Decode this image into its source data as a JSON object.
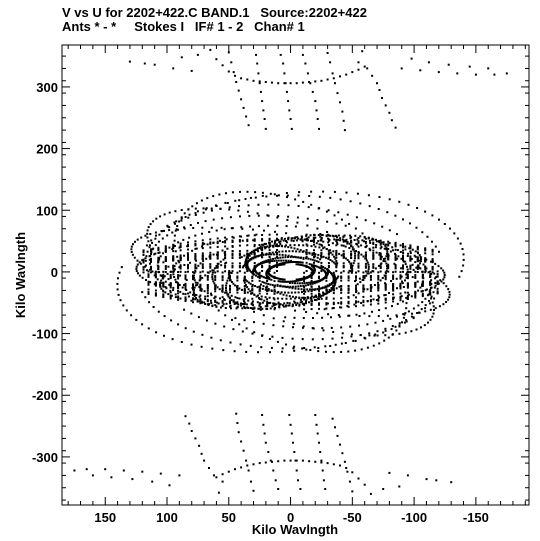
{
  "chart_data": {
    "type": "scatter",
    "title_line1": "V vs U for 2202+422.C BAND.1   Source:2202+422",
    "title_line2": "Ants * - *     Stokes I   IF# 1 - 2   Chan# 1",
    "xlabel": "Kilo Wavlngth",
    "ylabel": "Kilo Wavlngth",
    "xlim": [
      185,
      -193
    ],
    "ylim": [
      -378,
      368
    ],
    "x_reversed": true,
    "xticks": [
      150,
      100,
      50,
      0,
      -50,
      -100,
      -150
    ],
    "xtick_labels": [
      "150",
      "100",
      "50",
      "0",
      "-50",
      "-100",
      "-150"
    ],
    "yticks": [
      300,
      200,
      100,
      0,
      -100,
      -200,
      -300
    ],
    "ytick_labels": [
      "300",
      "200",
      "100",
      "0",
      "-100",
      "-200",
      "-300"
    ],
    "grid": false,
    "marker_color": "#000000",
    "series": [
      {
        "values_desc": "",
        "points": [
          [
            -58,
            358
          ],
          [
            -55,
            340
          ],
          [
            -62,
            330
          ],
          [
            -66,
            318
          ],
          [
            -70,
            306
          ],
          [
            -72,
            295
          ],
          [
            -74,
            282
          ],
          [
            -77,
            270
          ],
          [
            -80,
            258
          ],
          [
            -82,
            246
          ],
          [
            -85,
            234
          ],
          [
            -30,
            355
          ],
          [
            -32,
            340
          ],
          [
            -34,
            322
          ],
          [
            -36,
            306
          ],
          [
            -38,
            290
          ],
          [
            -40,
            275
          ],
          [
            -42,
            260
          ],
          [
            -43,
            245
          ],
          [
            -44,
            230
          ],
          [
            -10,
            352
          ],
          [
            -12,
            338
          ],
          [
            -14,
            322
          ],
          [
            -16,
            306
          ],
          [
            -18,
            292
          ],
          [
            -20,
            277
          ],
          [
            -21,
            262
          ],
          [
            -22,
            248
          ],
          [
            -23,
            232
          ],
          [
            8,
            352
          ],
          [
            6,
            338
          ],
          [
            5,
            322
          ],
          [
            4,
            306
          ],
          [
            3,
            292
          ],
          [
            2,
            277
          ],
          [
            1,
            262
          ],
          [
            0,
            248
          ],
          [
            -1,
            232
          ],
          [
            28,
            352
          ],
          [
            27,
            338
          ],
          [
            26,
            322
          ],
          [
            25,
            306
          ],
          [
            24,
            292
          ],
          [
            23,
            277
          ],
          [
            22,
            262
          ],
          [
            21,
            248
          ],
          [
            20,
            232
          ],
          [
            50,
            356
          ],
          [
            48,
            340
          ],
          [
            46,
            324
          ],
          [
            44,
            308
          ],
          [
            42,
            294
          ],
          [
            40,
            280
          ],
          [
            38,
            266
          ],
          [
            36,
            252
          ],
          [
            34,
            238
          ],
          [
            65,
            360
          ],
          [
            60,
            345
          ],
          [
            55,
            335
          ],
          [
            50,
            325
          ],
          [
            45,
            318
          ],
          [
            40,
            314
          ],
          [
            35,
            312
          ],
          [
            30,
            310
          ],
          [
            25,
            309
          ],
          [
            20,
            308
          ],
          [
            15,
            307
          ],
          [
            10,
            306
          ],
          [
            5,
            306
          ],
          [
            0,
            306
          ],
          [
            -5,
            306
          ],
          [
            -10,
            307
          ],
          [
            -15,
            308
          ],
          [
            -20,
            309
          ],
          [
            -25,
            310
          ],
          [
            -30,
            312
          ],
          [
            -35,
            314
          ],
          [
            -40,
            317
          ],
          [
            -45,
            320
          ],
          [
            -50,
            324
          ],
          [
            -55,
            328
          ],
          [
            -60,
            333
          ],
          [
            110,
            336
          ],
          [
            95,
            330
          ],
          [
            80,
            326
          ],
          [
            -90,
            330
          ],
          [
            -105,
            327
          ],
          [
            -120,
            324
          ],
          [
            -135,
            322
          ],
          [
            -150,
            320
          ],
          [
            -165,
            320
          ],
          [
            -175,
            322
          ],
          [
            130,
            341
          ],
          [
            118,
            338
          ],
          [
            88,
            348
          ],
          [
            75,
            352
          ],
          [
            -98,
            346
          ],
          [
            -112,
            340
          ],
          [
            -128,
            336
          ],
          [
            -145,
            333
          ],
          [
            -160,
            330
          ],
          [
            58,
            -358
          ],
          [
            55,
            -340
          ],
          [
            62,
            -330
          ],
          [
            66,
            -318
          ],
          [
            70,
            -306
          ],
          [
            72,
            -295
          ],
          [
            74,
            -282
          ],
          [
            77,
            -270
          ],
          [
            80,
            -258
          ],
          [
            82,
            -246
          ],
          [
            85,
            -234
          ],
          [
            30,
            -355
          ],
          [
            32,
            -340
          ],
          [
            34,
            -322
          ],
          [
            36,
            -306
          ],
          [
            38,
            -290
          ],
          [
            40,
            -275
          ],
          [
            42,
            -260
          ],
          [
            43,
            -245
          ],
          [
            44,
            -230
          ],
          [
            10,
            -352
          ],
          [
            12,
            -338
          ],
          [
            14,
            -322
          ],
          [
            16,
            -306
          ],
          [
            18,
            -292
          ],
          [
            20,
            -277
          ],
          [
            21,
            -262
          ],
          [
            22,
            -248
          ],
          [
            23,
            -232
          ],
          [
            -8,
            -352
          ],
          [
            -6,
            -338
          ],
          [
            -5,
            -322
          ],
          [
            -4,
            -306
          ],
          [
            -3,
            -292
          ],
          [
            -2,
            -277
          ],
          [
            -1,
            -262
          ],
          [
            0,
            -248
          ],
          [
            1,
            -232
          ],
          [
            -28,
            -352
          ],
          [
            -27,
            -338
          ],
          [
            -26,
            -322
          ],
          [
            -25,
            -306
          ],
          [
            -24,
            -292
          ],
          [
            -23,
            -277
          ],
          [
            -22,
            -262
          ],
          [
            -21,
            -248
          ],
          [
            -20,
            -232
          ],
          [
            -50,
            -356
          ],
          [
            -48,
            -340
          ],
          [
            -46,
            -324
          ],
          [
            -44,
            -308
          ],
          [
            -42,
            -294
          ],
          [
            -40,
            -280
          ],
          [
            -38,
            -266
          ],
          [
            -36,
            -252
          ],
          [
            -34,
            -238
          ],
          [
            -65,
            -360
          ],
          [
            -60,
            -345
          ],
          [
            -55,
            -335
          ],
          [
            -50,
            -325
          ],
          [
            -45,
            -318
          ],
          [
            -40,
            -314
          ],
          [
            -35,
            -312
          ],
          [
            -30,
            -310
          ],
          [
            -25,
            -309
          ],
          [
            -20,
            -308
          ],
          [
            -15,
            -307
          ],
          [
            -10,
            -306
          ],
          [
            -5,
            -306
          ],
          [
            0,
            -306
          ],
          [
            5,
            -306
          ],
          [
            10,
            -307
          ],
          [
            15,
            -308
          ],
          [
            20,
            -309
          ],
          [
            25,
            -310
          ],
          [
            30,
            -312
          ],
          [
            35,
            -314
          ],
          [
            40,
            -317
          ],
          [
            45,
            -320
          ],
          [
            50,
            -324
          ],
          [
            55,
            -328
          ],
          [
            60,
            -333
          ],
          [
            -110,
            -336
          ],
          [
            -95,
            -330
          ],
          [
            -80,
            -326
          ],
          [
            90,
            -330
          ],
          [
            105,
            -327
          ],
          [
            120,
            -324
          ],
          [
            135,
            -322
          ],
          [
            150,
            -320
          ],
          [
            165,
            -320
          ],
          [
            175,
            -322
          ],
          [
            -130,
            -341
          ],
          [
            -118,
            -338
          ],
          [
            -88,
            -348
          ],
          [
            -75,
            -352
          ],
          [
            98,
            -346
          ],
          [
            112,
            -340
          ],
          [
            128,
            -336
          ],
          [
            145,
            -333
          ],
          [
            160,
            -330
          ]
        ]
      }
    ]
  }
}
